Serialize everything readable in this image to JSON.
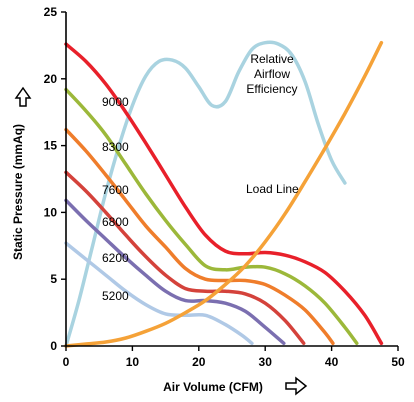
{
  "chart_data": {
    "type": "line",
    "xlabel": "Air Volume (CFM)",
    "ylabel": "Static Pressure (mmAq)",
    "xlim": [
      0,
      50
    ],
    "ylim": [
      0,
      25
    ],
    "xticks": [
      "0",
      "10",
      "20",
      "30",
      "40",
      "50"
    ],
    "yticks": [
      "0",
      "5",
      "10",
      "15",
      "20",
      "25"
    ],
    "grid": false,
    "legend": "none",
    "series": [
      {
        "name": "9000",
        "color": "#e8202a",
        "x": [
          0,
          3,
          6,
          9,
          12,
          15,
          18,
          21,
          24,
          27,
          30,
          33,
          36,
          39,
          42,
          45,
          47.5
        ],
        "y": [
          22.6,
          21.3,
          19.6,
          17.5,
          15.2,
          12.8,
          10.4,
          8.3,
          7.1,
          6.9,
          7.0,
          6.8,
          6.3,
          5.5,
          4.1,
          2.3,
          0.2
        ]
      },
      {
        "name": "8300",
        "color": "#9cb83a",
        "x": [
          0,
          3,
          6,
          9,
          12,
          15,
          18,
          21,
          24,
          27,
          30,
          33,
          36,
          39,
          42,
          43.8
        ],
        "y": [
          19.2,
          17.6,
          15.8,
          13.6,
          11.4,
          9.4,
          7.6,
          6.0,
          5.7,
          5.9,
          5.9,
          5.4,
          4.5,
          3.2,
          1.4,
          0.2
        ]
      },
      {
        "name": "7600",
        "color": "#ef7d2b",
        "x": [
          0,
          3,
          6,
          9,
          12,
          15,
          18,
          21,
          24,
          27,
          30,
          33,
          36,
          39,
          40.2
        ],
        "y": [
          16.2,
          14.6,
          12.8,
          10.9,
          9.0,
          7.4,
          5.8,
          5.0,
          4.9,
          4.9,
          4.6,
          3.8,
          2.7,
          1.0,
          0.2
        ]
      },
      {
        "name": "6800",
        "color": "#d4423b",
        "x": [
          0,
          3,
          6,
          9,
          12,
          15,
          18,
          21,
          24,
          27,
          30,
          33,
          35.8
        ],
        "y": [
          13.0,
          11.6,
          10.0,
          8.3,
          6.7,
          5.3,
          4.3,
          4.1,
          4.1,
          3.9,
          3.2,
          1.9,
          0.2
        ]
      },
      {
        "name": "6200",
        "color": "#7b6fb0",
        "x": [
          0,
          3,
          6,
          9,
          12,
          15,
          18,
          21,
          24,
          27,
          30,
          32.8
        ],
        "y": [
          10.9,
          9.4,
          8.0,
          6.6,
          5.3,
          4.1,
          3.4,
          3.4,
          3.2,
          2.6,
          1.4,
          0.2
        ]
      },
      {
        "name": "5200",
        "color": "#b0c9e6",
        "x": [
          0,
          3,
          6,
          9,
          12,
          15,
          18,
          21,
          24,
          26.5,
          28
        ],
        "y": [
          7.7,
          6.5,
          5.3,
          4.1,
          3.1,
          2.4,
          2.3,
          2.3,
          1.6,
          0.8,
          0.2
        ]
      },
      {
        "name": "Load Line",
        "color": "#f5a238",
        "x": [
          0,
          3,
          6,
          9,
          12,
          15,
          18,
          21,
          24,
          27,
          30,
          33,
          36,
          39,
          42,
          45,
          47.5
        ],
        "y": [
          0.0,
          0.15,
          0.3,
          0.6,
          1.1,
          1.7,
          2.5,
          3.4,
          4.6,
          6.0,
          7.8,
          9.9,
          12.3,
          14.8,
          17.4,
          20.2,
          22.7
        ]
      },
      {
        "name": "Relative Airflow Efficiency",
        "color": "#a9d3e0",
        "x": [
          0,
          2,
          4,
          6,
          8,
          10,
          12,
          14,
          16,
          18,
          20,
          22,
          24,
          26,
          28,
          30,
          32,
          34,
          36,
          38,
          40,
          42
        ],
        "y": [
          0.0,
          3.5,
          7.5,
          11.5,
          15.0,
          18.0,
          20.2,
          21.3,
          21.4,
          20.8,
          19.4,
          18.0,
          18.3,
          20.5,
          22.2,
          22.7,
          22.6,
          21.8,
          19.8,
          16.6,
          13.9,
          12.2
        ]
      }
    ],
    "labels": {
      "s9000": "9000",
      "s8300": "8300",
      "s7600": "7600",
      "s6800": "6800",
      "s6200": "6200",
      "s5200": "5200",
      "load_line": "Load Line",
      "eff_1": "Relative",
      "eff_2": "Airflow",
      "eff_3": "Efficiency"
    }
  }
}
